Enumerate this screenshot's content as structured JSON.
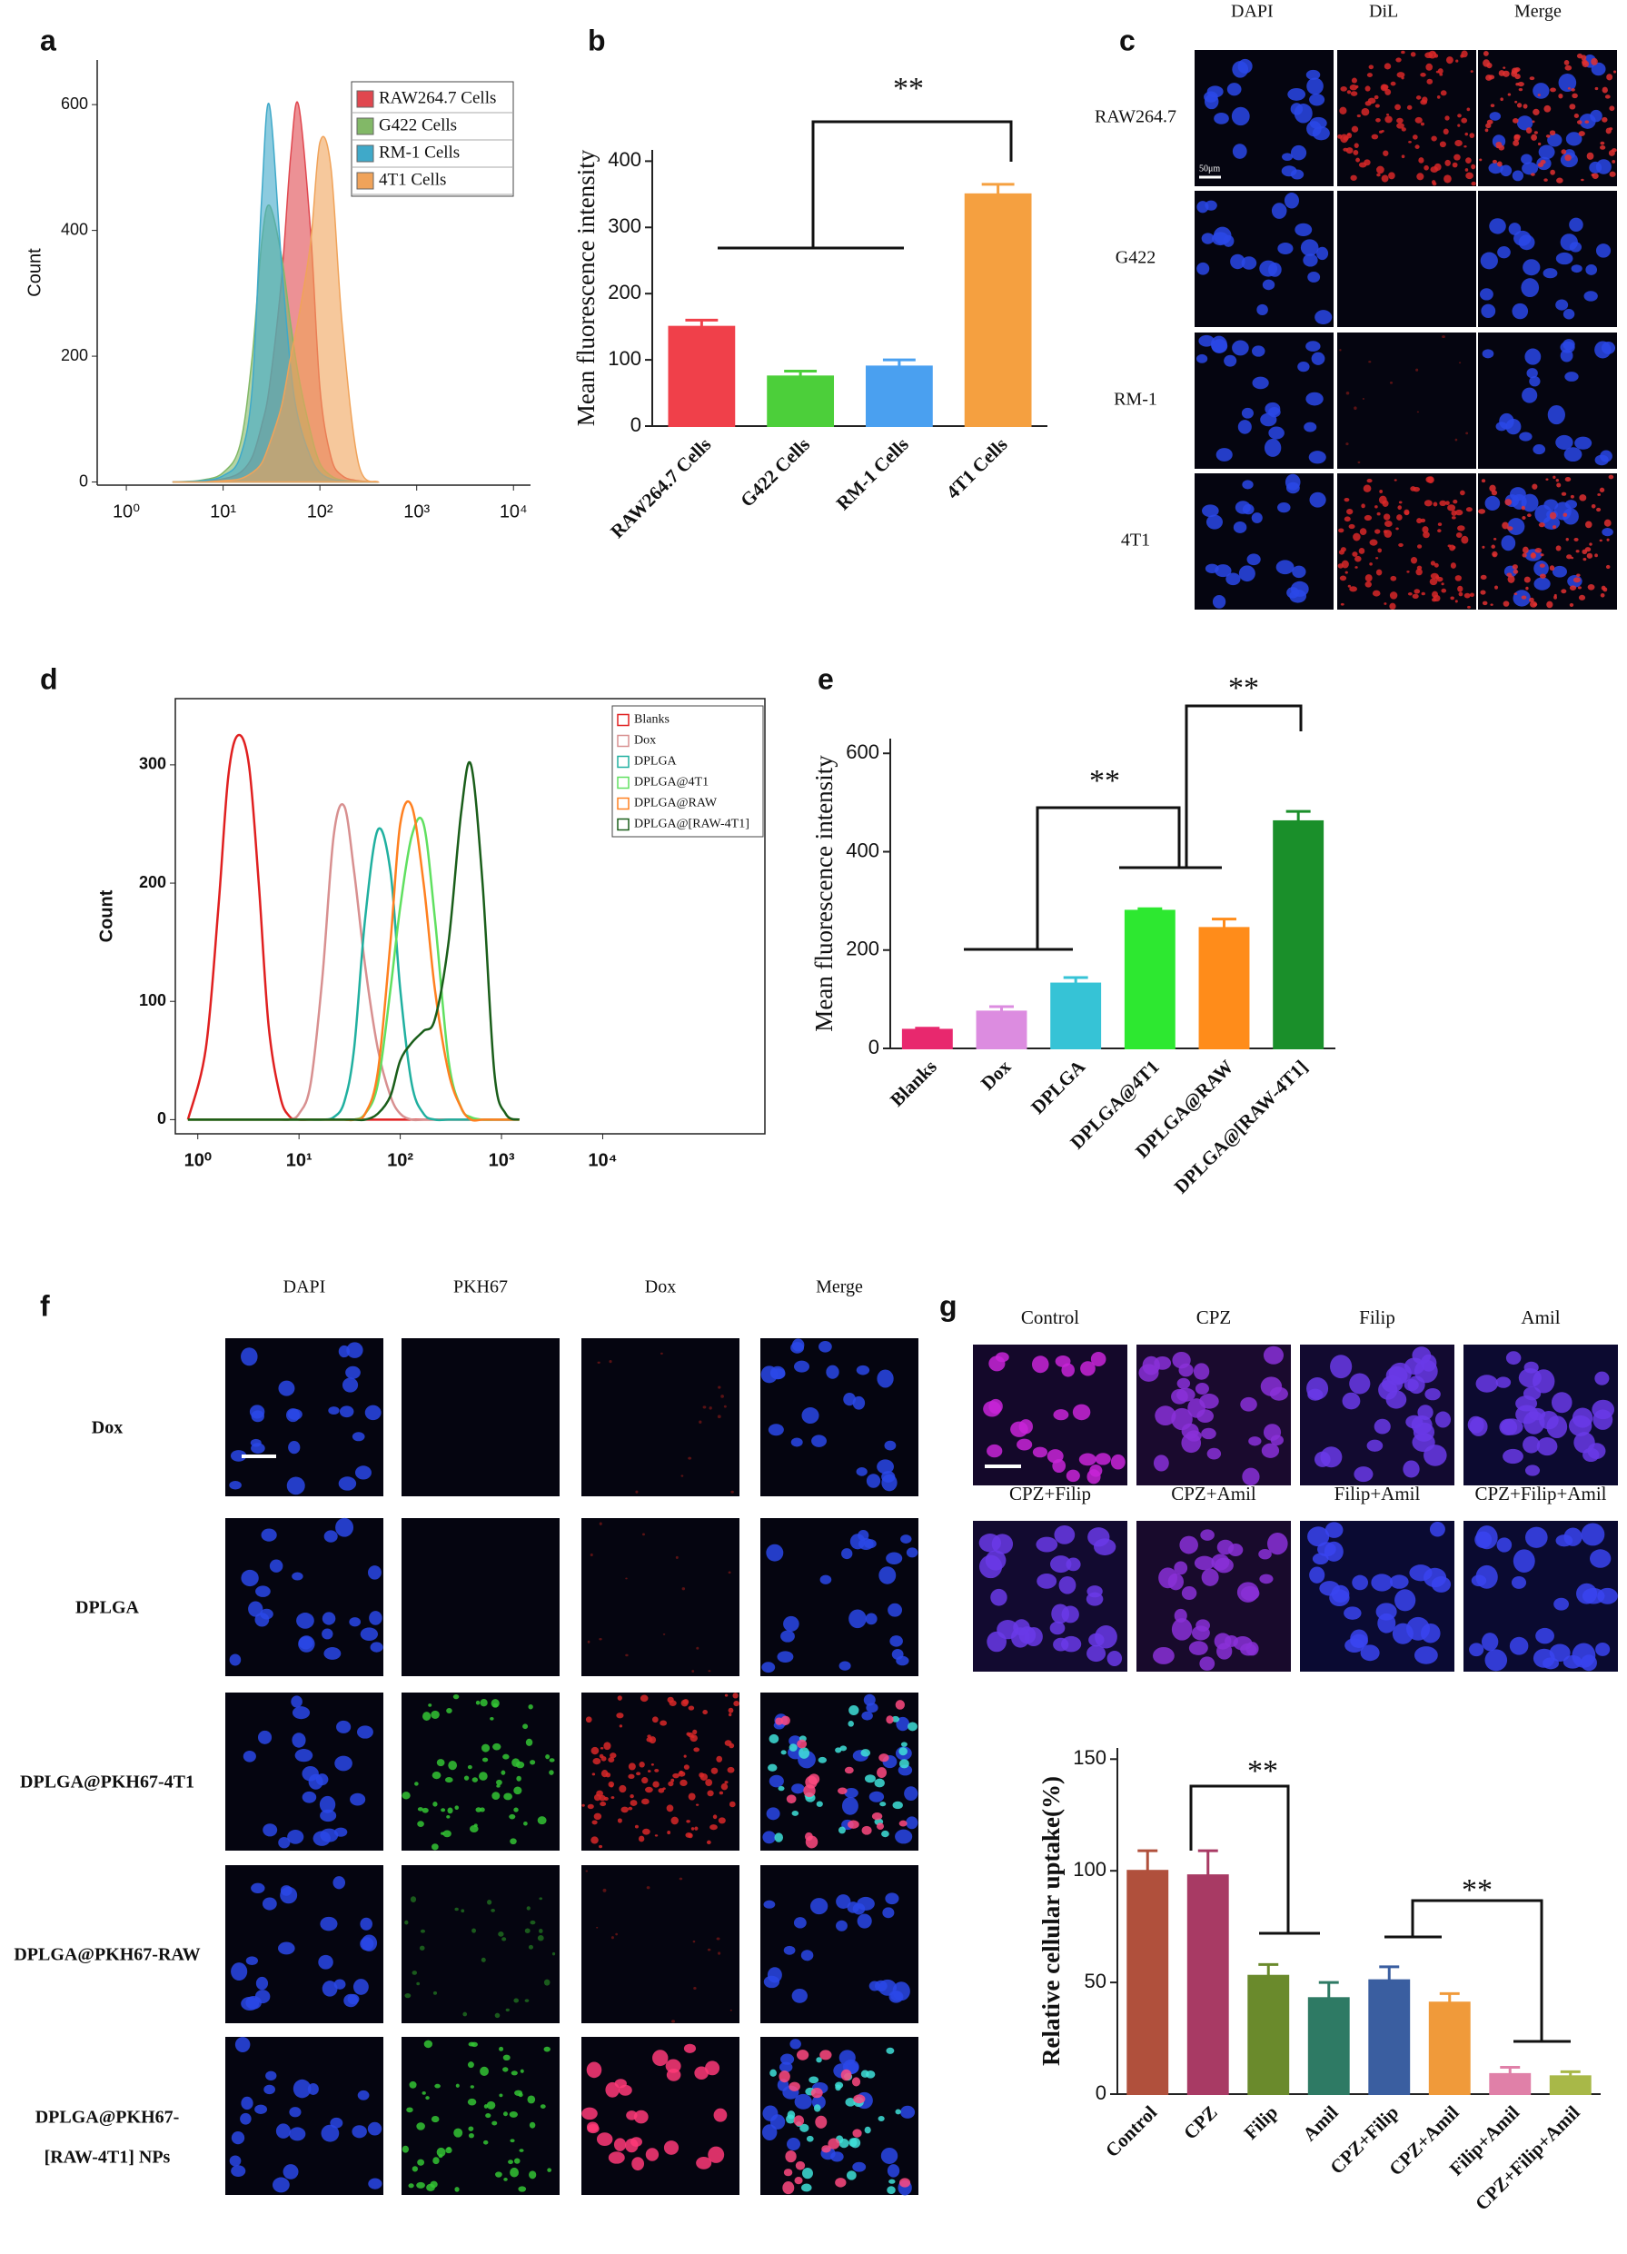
{
  "chart_data": [
    {
      "panel_label": "a",
      "type": "area",
      "xscale": "log",
      "x": [
        3,
        6,
        10,
        15,
        20,
        25,
        30,
        40,
        50,
        60,
        80,
        100,
        130,
        170,
        250,
        400
      ],
      "xlim": [
        0.5,
        15000
      ],
      "xticks": [
        {
          "value": 1,
          "label": "10⁰"
        },
        {
          "value": 10,
          "label": "10¹"
        },
        {
          "value": 100,
          "label": "10²"
        },
        {
          "value": 1000,
          "label": "10³"
        },
        {
          "value": 10000,
          "label": "10⁴"
        }
      ],
      "ylim": [
        -5,
        671
      ],
      "yticks": [
        0,
        200,
        400,
        600
      ],
      "ylabel": "Count",
      "legend": "upper right",
      "series": [
        {
          "name": "RAW264.7 Cells",
          "color": "#e0474f",
          "values": [
            0,
            1,
            5,
            15,
            40,
            90,
            150,
            320,
            520,
            600,
            400,
            150,
            40,
            10,
            2,
            0
          ]
        },
        {
          "name": "G422 Cells",
          "color": "#82b867",
          "values": [
            0,
            3,
            15,
            60,
            200,
            380,
            440,
            360,
            250,
            170,
            80,
            30,
            10,
            3,
            1,
            0
          ]
        },
        {
          "name": "RM-1 Cells",
          "color": "#3fa9c9",
          "values": [
            0,
            2,
            10,
            40,
            150,
            450,
            600,
            350,
            180,
            100,
            40,
            15,
            5,
            2,
            0,
            0
          ]
        },
        {
          "name": "4T1 Cells",
          "color": "#f0a35a",
          "values": [
            0,
            0,
            2,
            5,
            15,
            30,
            60,
            120,
            200,
            260,
            380,
            540,
            500,
            250,
            30,
            0
          ]
        }
      ]
    },
    {
      "panel_label": "b",
      "type": "bar",
      "categories": [
        "RAW264.7 Cells",
        "G422 Cells",
        "RM-1 Cells",
        "4T1 Cells"
      ],
      "values": [
        150,
        75,
        90,
        350
      ],
      "errors": [
        10,
        8,
        10,
        15
      ],
      "colors": [
        "#f0404a",
        "#4ccf3a",
        "#4aa0f0",
        "#f5a040"
      ],
      "ylim": [
        0,
        417
      ],
      "yticks": [
        0,
        100,
        200,
        300,
        400
      ],
      "ylabel": "Mean fluorescence intensity",
      "annotations": [
        "**"
      ]
    },
    {
      "panel_label": "d",
      "type": "line",
      "xscale": "log",
      "x": [
        0.8,
        1.2,
        1.6,
        2,
        2.5,
        3.2,
        4,
        5,
        6.5,
        8,
        10,
        13,
        17,
        22,
        28,
        35,
        45,
        60,
        80,
        100,
        130,
        170,
        220,
        300,
        400,
        500,
        650,
        850,
        1100,
        1500
      ],
      "xlim": [
        0.6,
        400000
      ],
      "xticks": [
        {
          "value": 1,
          "label": "10⁰"
        },
        {
          "value": 10,
          "label": "10¹"
        },
        {
          "value": 100,
          "label": "10²"
        },
        {
          "value": 1000,
          "label": "10³"
        },
        {
          "value": 10000,
          "label": "10⁴"
        }
      ],
      "ylim": [
        -12,
        356
      ],
      "yticks": [
        0,
        100,
        200,
        300
      ],
      "ylabel": "Count",
      "legend": "upper right",
      "series": [
        {
          "name": "Blanks",
          "color": "#e02020",
          "values": [
            0,
            60,
            180,
            290,
            325,
            300,
            200,
            80,
            20,
            3,
            0,
            0,
            0,
            0,
            0,
            0,
            0,
            0,
            0,
            0,
            0,
            0,
            0,
            0,
            0,
            0,
            0,
            0,
            0,
            0
          ]
        },
        {
          "name": "Dox",
          "color": "#d89090",
          "values": [
            0,
            0,
            0,
            0,
            0,
            0,
            0,
            0,
            0,
            0,
            5,
            30,
            120,
            240,
            265,
            210,
            130,
            60,
            20,
            5,
            0,
            0,
            0,
            0,
            0,
            0,
            0,
            0,
            0,
            0
          ]
        },
        {
          "name": "DPLGA",
          "color": "#20b0a0",
          "values": [
            0,
            0,
            0,
            0,
            0,
            0,
            0,
            0,
            0,
            0,
            0,
            0,
            0,
            2,
            15,
            60,
            170,
            245,
            210,
            110,
            30,
            5,
            0,
            0,
            0,
            0,
            0,
            0,
            0,
            0
          ]
        },
        {
          "name": "DPLGA@4T1",
          "color": "#60e060",
          "values": [
            0,
            0,
            0,
            0,
            0,
            0,
            0,
            0,
            0,
            0,
            0,
            0,
            0,
            0,
            0,
            0,
            5,
            30,
            110,
            180,
            240,
            250,
            170,
            50,
            10,
            2,
            0,
            0,
            0,
            0
          ]
        },
        {
          "name": "DPLGA@RAW",
          "color": "#ff8020",
          "values": [
            0,
            0,
            0,
            0,
            0,
            0,
            0,
            0,
            0,
            0,
            0,
            0,
            0,
            0,
            0,
            0,
            5,
            40,
            150,
            250,
            265,
            200,
            110,
            40,
            10,
            0,
            0,
            0,
            0,
            0
          ]
        },
        {
          "name": "DPLGA@[RAW-4T1]",
          "color": "#1a5e1a",
          "values": [
            0,
            0,
            0,
            0,
            0,
            0,
            0,
            0,
            0,
            0,
            0,
            0,
            0,
            0,
            0,
            0,
            0,
            5,
            20,
            50,
            65,
            75,
            85,
            150,
            260,
            300,
            200,
            40,
            5,
            0
          ]
        }
      ]
    },
    {
      "panel_label": "e",
      "type": "bar",
      "categories": [
        "Blanks",
        "Dox",
        "DPLGA",
        "DPLGA@4T1",
        "DPLGA@RAW",
        "DPLGA@[RAW-4T1]"
      ],
      "values": [
        38,
        75,
        132,
        280,
        245,
        462
      ],
      "errors": [
        3,
        10,
        12,
        4,
        18,
        20
      ],
      "colors": [
        "#e8286e",
        "#dc8ce0",
        "#36c3d6",
        "#2de830",
        "#ff8c1a",
        "#1a8f2a"
      ],
      "ylim": [
        0,
        630
      ],
      "yticks": [
        0,
        200,
        400,
        600
      ],
      "ylabel": "Mean fluorescence intensity",
      "annotations": [
        "**",
        "**"
      ]
    },
    {
      "type": "bar",
      "categories": [
        "Control",
        "CPZ",
        "Filip",
        "Amil",
        "CPZ+Filip",
        "CPZ+Amil",
        "Filip+Amil",
        "CPZ+Filip+Amil"
      ],
      "values": [
        100,
        98,
        53,
        43,
        51,
        41,
        9,
        8
      ],
      "errors": [
        9,
        11,
        5,
        7,
        6,
        4,
        3,
        2
      ],
      "colors": [
        "#b0503c",
        "#a83a64",
        "#6a8a2c",
        "#2e7a64",
        "#3a5ea0",
        "#f09a3a",
        "#e080a8",
        "#a8b848"
      ],
      "ylim": [
        0,
        155
      ],
      "yticks": [
        0,
        50,
        100,
        150
      ],
      "ylabel": "Relative cellular uptake(%)",
      "annotations": [
        "**",
        "**"
      ]
    }
  ],
  "image_panels": [
    {
      "panel_label": "c",
      "columns": [
        "DAPI",
        "DiL",
        "Merge"
      ],
      "rows": [
        "RAW264.7",
        "G422",
        "RM-1",
        "4T1"
      ],
      "scale_bar": "50μm"
    },
    {
      "panel_label": "f",
      "columns": [
        "DAPI",
        "PKH67",
        "Dox",
        "Merge"
      ],
      "rows": [
        "Dox",
        "DPLGA",
        "DPLGA@PKH67-4T1",
        "DPLGA@PKH67-RAW",
        [
          "DPLGA@PKH67-",
          "[RAW-4T1] NPs"
        ]
      ]
    },
    {
      "panel_label": "g",
      "labels": [
        [
          "Control",
          "CPZ",
          "Filip",
          "Amil"
        ],
        [
          "CPZ+Filip",
          "CPZ+Amil",
          "Filip+Amil",
          "CPZ+Filip+Amil"
        ]
      ]
    }
  ]
}
